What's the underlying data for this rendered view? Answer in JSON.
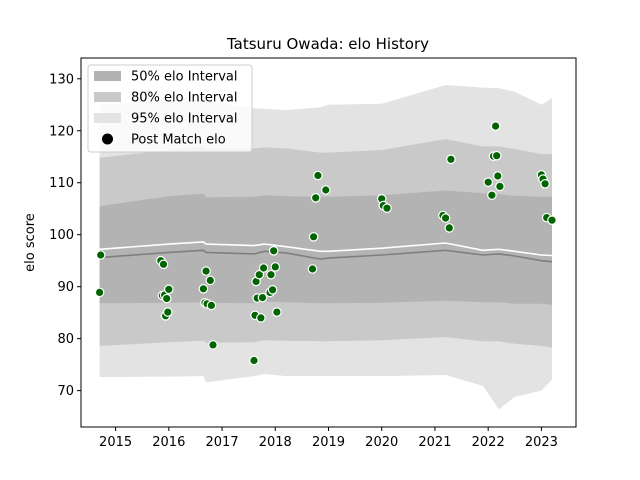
{
  "chart_data": {
    "type": "scatter",
    "title": "Tatsuru Owada: elo History",
    "xlabel": "",
    "ylabel": "elo score",
    "xlim": [
      2014.35,
      2023.65
    ],
    "ylim": [
      63,
      134
    ],
    "x_ticks": [
      2015,
      2016,
      2017,
      2018,
      2019,
      2020,
      2021,
      2022,
      2023
    ],
    "y_ticks": [
      70,
      80,
      90,
      100,
      110,
      120,
      130
    ],
    "grid": false,
    "legend_position": "top-left",
    "legend": [
      {
        "label": "50% elo Interval",
        "kind": "band",
        "color": "#b3b3b3"
      },
      {
        "label": "80% elo Interval",
        "kind": "band",
        "color": "#c9c9c9"
      },
      {
        "label": "95% elo Interval",
        "kind": "band",
        "color": "#e3e3e3"
      },
      {
        "label": "Post Match elo",
        "kind": "marker",
        "color": "#000000"
      }
    ],
    "bands": {
      "x": [
        2014.7,
        2016.0,
        2016.65,
        2016.7,
        2017.6,
        2017.8,
        2018.2,
        2018.85,
        2019.0,
        2020.0,
        2021.2,
        2021.9,
        2022.2,
        2022.5,
        2023.0,
        2023.2
      ],
      "mean": [
        95.6,
        96.6,
        97.0,
        96.6,
        96.3,
        96.8,
        96.5,
        95.3,
        95.5,
        96.1,
        97.0,
        96.1,
        96.3,
        95.9,
        95.0,
        94.8
      ],
      "p50": [
        [
          86.8,
          105.5
        ],
        [
          86.9,
          107.4
        ],
        [
          87.0,
          107.9
        ],
        [
          86.9,
          107.2
        ],
        [
          86.8,
          107.3
        ],
        [
          87.1,
          107.6
        ],
        [
          87.0,
          107.4
        ],
        [
          86.8,
          107.3
        ],
        [
          86.8,
          107.3
        ],
        [
          86.9,
          107.6
        ],
        [
          87.3,
          108.5
        ],
        [
          87.0,
          108.0
        ],
        [
          87.0,
          107.8
        ],
        [
          86.7,
          107.5
        ],
        [
          86.7,
          107.3
        ],
        [
          86.5,
          107.3
        ]
      ],
      "p80": [
        [
          78.6,
          114.8
        ],
        [
          79.3,
          116.3
        ],
        [
          79.6,
          117.0
        ],
        [
          79.2,
          116.5
        ],
        [
          79.3,
          116.6
        ],
        [
          79.7,
          116.8
        ],
        [
          79.6,
          116.6
        ],
        [
          79.5,
          115.8
        ],
        [
          79.5,
          115.8
        ],
        [
          79.7,
          116.3
        ],
        [
          80.3,
          118.4
        ],
        [
          79.5,
          117.0
        ],
        [
          79.5,
          117.0
        ],
        [
          79.0,
          116.5
        ],
        [
          78.6,
          115.5
        ],
        [
          78.3,
          115.5
        ]
      ],
      "p95": [
        [
          72.6,
          125.0
        ],
        [
          72.7,
          125.8
        ],
        [
          72.8,
          126.8
        ],
        [
          71.6,
          125.7
        ],
        [
          72.8,
          124.3
        ],
        [
          73.2,
          124.2
        ],
        [
          72.8,
          124.0
        ],
        [
          72.8,
          124.5
        ],
        [
          72.8,
          125.0
        ],
        [
          72.8,
          125.2
        ],
        [
          73.0,
          128.8
        ],
        [
          70.9,
          128.3
        ],
        [
          66.4,
          128.2
        ],
        [
          68.8,
          127.5
        ],
        [
          70.0,
          125.0
        ],
        [
          72.1,
          126.3
        ]
      ],
      "line_upper": [
        97.2,
        98.2,
        98.6,
        98.2,
        97.9,
        98.2,
        97.7,
        96.8,
        96.8,
        97.4,
        98.4,
        97.0,
        97.2,
        96.8,
        96.1,
        96.0
      ]
    },
    "series": [
      {
        "name": "Post Match elo",
        "points": [
          [
            2014.7,
            88.9
          ],
          [
            2014.72,
            96.1
          ],
          [
            2015.85,
            95.0
          ],
          [
            2015.88,
            88.3
          ],
          [
            2015.9,
            94.3
          ],
          [
            2015.92,
            88.4
          ],
          [
            2015.94,
            84.4
          ],
          [
            2015.96,
            87.7
          ],
          [
            2015.98,
            85.1
          ],
          [
            2016.0,
            89.5
          ],
          [
            2016.65,
            89.6
          ],
          [
            2016.68,
            86.9
          ],
          [
            2016.7,
            93.0
          ],
          [
            2016.72,
            86.7
          ],
          [
            2016.78,
            91.2
          ],
          [
            2016.8,
            86.4
          ],
          [
            2016.83,
            78.8
          ],
          [
            2017.6,
            75.8
          ],
          [
            2017.62,
            84.5
          ],
          [
            2017.64,
            91.0
          ],
          [
            2017.66,
            87.8
          ],
          [
            2017.7,
            92.3
          ],
          [
            2017.73,
            84.0
          ],
          [
            2017.76,
            87.9
          ],
          [
            2017.78,
            93.6
          ],
          [
            2017.9,
            88.9
          ],
          [
            2017.92,
            92.3
          ],
          [
            2017.95,
            89.4
          ],
          [
            2017.97,
            96.9
          ],
          [
            2018.0,
            93.8
          ],
          [
            2018.03,
            85.1
          ],
          [
            2018.7,
            93.4
          ],
          [
            2018.72,
            99.6
          ],
          [
            2018.76,
            107.1
          ],
          [
            2018.8,
            111.4
          ],
          [
            2018.95,
            108.6
          ],
          [
            2020.0,
            106.9
          ],
          [
            2020.03,
            105.6
          ],
          [
            2020.1,
            105.1
          ],
          [
            2021.15,
            103.7
          ],
          [
            2021.2,
            103.2
          ],
          [
            2021.27,
            101.3
          ],
          [
            2021.3,
            114.5
          ],
          [
            2022.0,
            110.1
          ],
          [
            2022.07,
            107.6
          ],
          [
            2022.1,
            115.1
          ],
          [
            2022.14,
            120.9
          ],
          [
            2022.16,
            115.2
          ],
          [
            2022.18,
            111.3
          ],
          [
            2022.22,
            109.3
          ],
          [
            2023.0,
            111.5
          ],
          [
            2023.03,
            110.7
          ],
          [
            2023.07,
            109.8
          ],
          [
            2023.1,
            103.3
          ],
          [
            2023.2,
            102.8
          ]
        ]
      }
    ]
  }
}
